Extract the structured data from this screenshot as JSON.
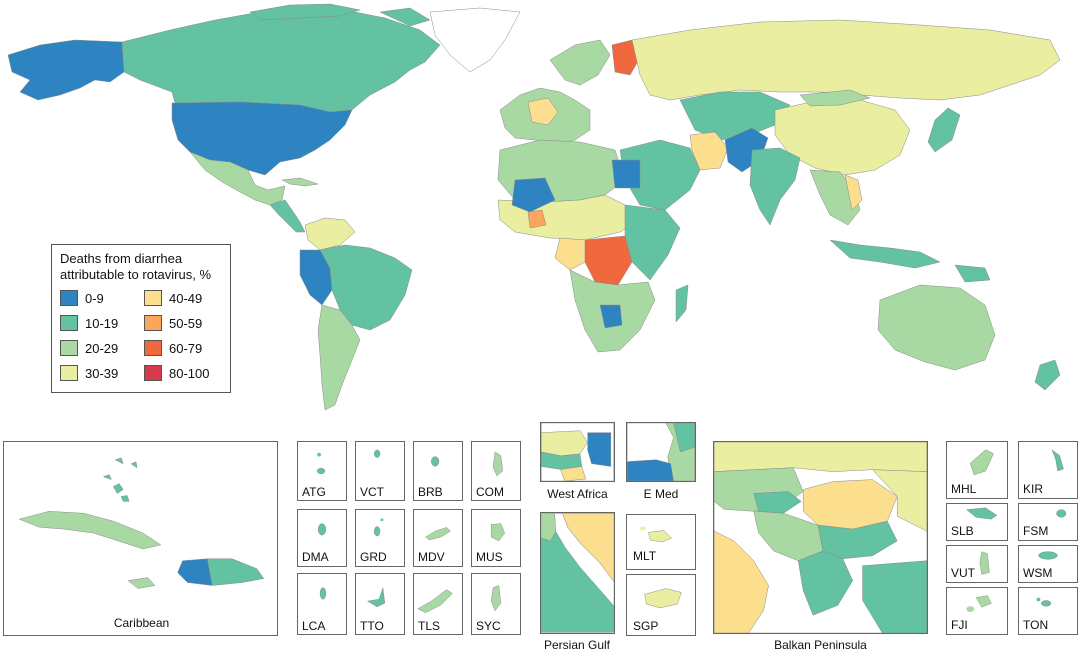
{
  "legend": {
    "title_line1": "Deaths from diarrhea",
    "title_line2": "attributable to rotavirus, %",
    "items": [
      {
        "label": "0-9",
        "color": "#2e84c0"
      },
      {
        "label": "40-49",
        "color": "#fcde8f"
      },
      {
        "label": "10-19",
        "color": "#62c2a2"
      },
      {
        "label": "50-59",
        "color": "#fca65d"
      },
      {
        "label": "20-29",
        "color": "#a9d9a3"
      },
      {
        "label": "60-79",
        "color": "#f0683e"
      },
      {
        "label": "30-39",
        "color": "#e9eea0"
      },
      {
        "label": "80-100",
        "color": "#d73a4a"
      }
    ]
  },
  "insets": {
    "caribbean": "Caribbean",
    "small": [
      "ATG",
      "VCT",
      "BRB",
      "COM",
      "DMA",
      "GRD",
      "MDV",
      "MUS",
      "LCA",
      "TTO",
      "TLS",
      "SYC"
    ],
    "west_africa": "West Africa",
    "e_med": "E Med",
    "persian_gulf": "Persian Gulf",
    "mlt": "MLT",
    "sgp": "SGP",
    "balkan": "Balkan Peninsula",
    "pacific": [
      "MHL",
      "KIR",
      "SLB",
      "FSM",
      "VUT",
      "WSM",
      "FJI",
      "TON"
    ]
  }
}
